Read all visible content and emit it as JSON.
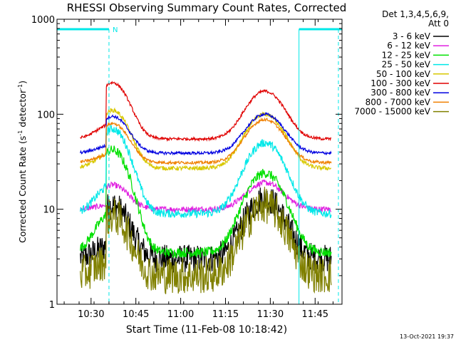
{
  "chart_data": {
    "type": "line",
    "title": "RHESSI Observing Summary Count Rates, Corrected",
    "xlabel": "Start Time (11-Feb-08 10:18:42)",
    "ylabel": "Corrected Count Rate (s-1 detector-1)",
    "ylabel_parts": {
      "a": "Corrected Count Rate (s",
      "sup1": "-1",
      "b": " detector",
      "sup2": "-1",
      "c": ")"
    },
    "yscale": "log",
    "ylim": [
      1,
      1000
    ],
    "xlim": [
      10.31,
      11.9
    ],
    "y_ticks": [
      {
        "v": 1,
        "label": "1"
      },
      {
        "v": 10,
        "label": "10"
      },
      {
        "v": 100,
        "label": "100"
      },
      {
        "v": 1000,
        "label": "1000"
      }
    ],
    "x_ticks": [
      {
        "v": 10.5,
        "label": "10:30"
      },
      {
        "v": 10.75,
        "label": "10:45"
      },
      {
        "v": 11.0,
        "label": "11:00"
      },
      {
        "v": 11.25,
        "label": "11:15"
      },
      {
        "v": 11.5,
        "label": "11:30"
      },
      {
        "v": 11.75,
        "label": "11:45"
      }
    ],
    "legend_header": [
      "Det 1,3,4,5,6,9,",
      "Att 0"
    ],
    "timestamp": "13-Oct-2021 19:37",
    "night_marker_label": "N",
    "night_intervals": [
      [
        10.31,
        10.6
      ],
      [
        11.66,
        11.9
      ]
    ],
    "saa_lines": [
      10.6,
      11.88
    ],
    "series": [
      {
        "name": "3 - 6 keV",
        "color": "#000000",
        "base": 3,
        "p1": 11,
        "p2": 13,
        "noise": 0.35,
        "floor": 1
      },
      {
        "name": "6 - 12 keV",
        "color": "#e020e0",
        "base": 10,
        "p1": 18,
        "p2": 19,
        "noise": 0.07
      },
      {
        "name": "12 - 25 keV",
        "color": "#00e000",
        "base": 3.5,
        "p1": 42,
        "p2": 24,
        "noise": 0.12
      },
      {
        "name": "25 - 50 keV",
        "color": "#00e8e8",
        "base": 9,
        "p1": 70,
        "p2": 50,
        "noise": 0.1
      },
      {
        "name": "50 - 100 keV",
        "color": "#d8c800",
        "base": 27,
        "p1": 110,
        "p2": 100,
        "noise": 0.05
      },
      {
        "name": "100 - 300 keV",
        "color": "#e00000",
        "base": 55,
        "p1": 215,
        "p2": 175,
        "noise": 0.035
      },
      {
        "name": "300 - 800 keV",
        "color": "#0000e0",
        "base": 39,
        "p1": 95,
        "p2": 100,
        "noise": 0.035
      },
      {
        "name": "800 - 7000 keV",
        "color": "#f08000",
        "base": 31,
        "p1": 80,
        "p2": 88,
        "noise": 0.035
      },
      {
        "name": "7000 - 15000 keV",
        "color": "#808000",
        "base": 2,
        "p1": 8.5,
        "p2": 11,
        "noise": 0.45,
        "floor": 1
      }
    ]
  }
}
